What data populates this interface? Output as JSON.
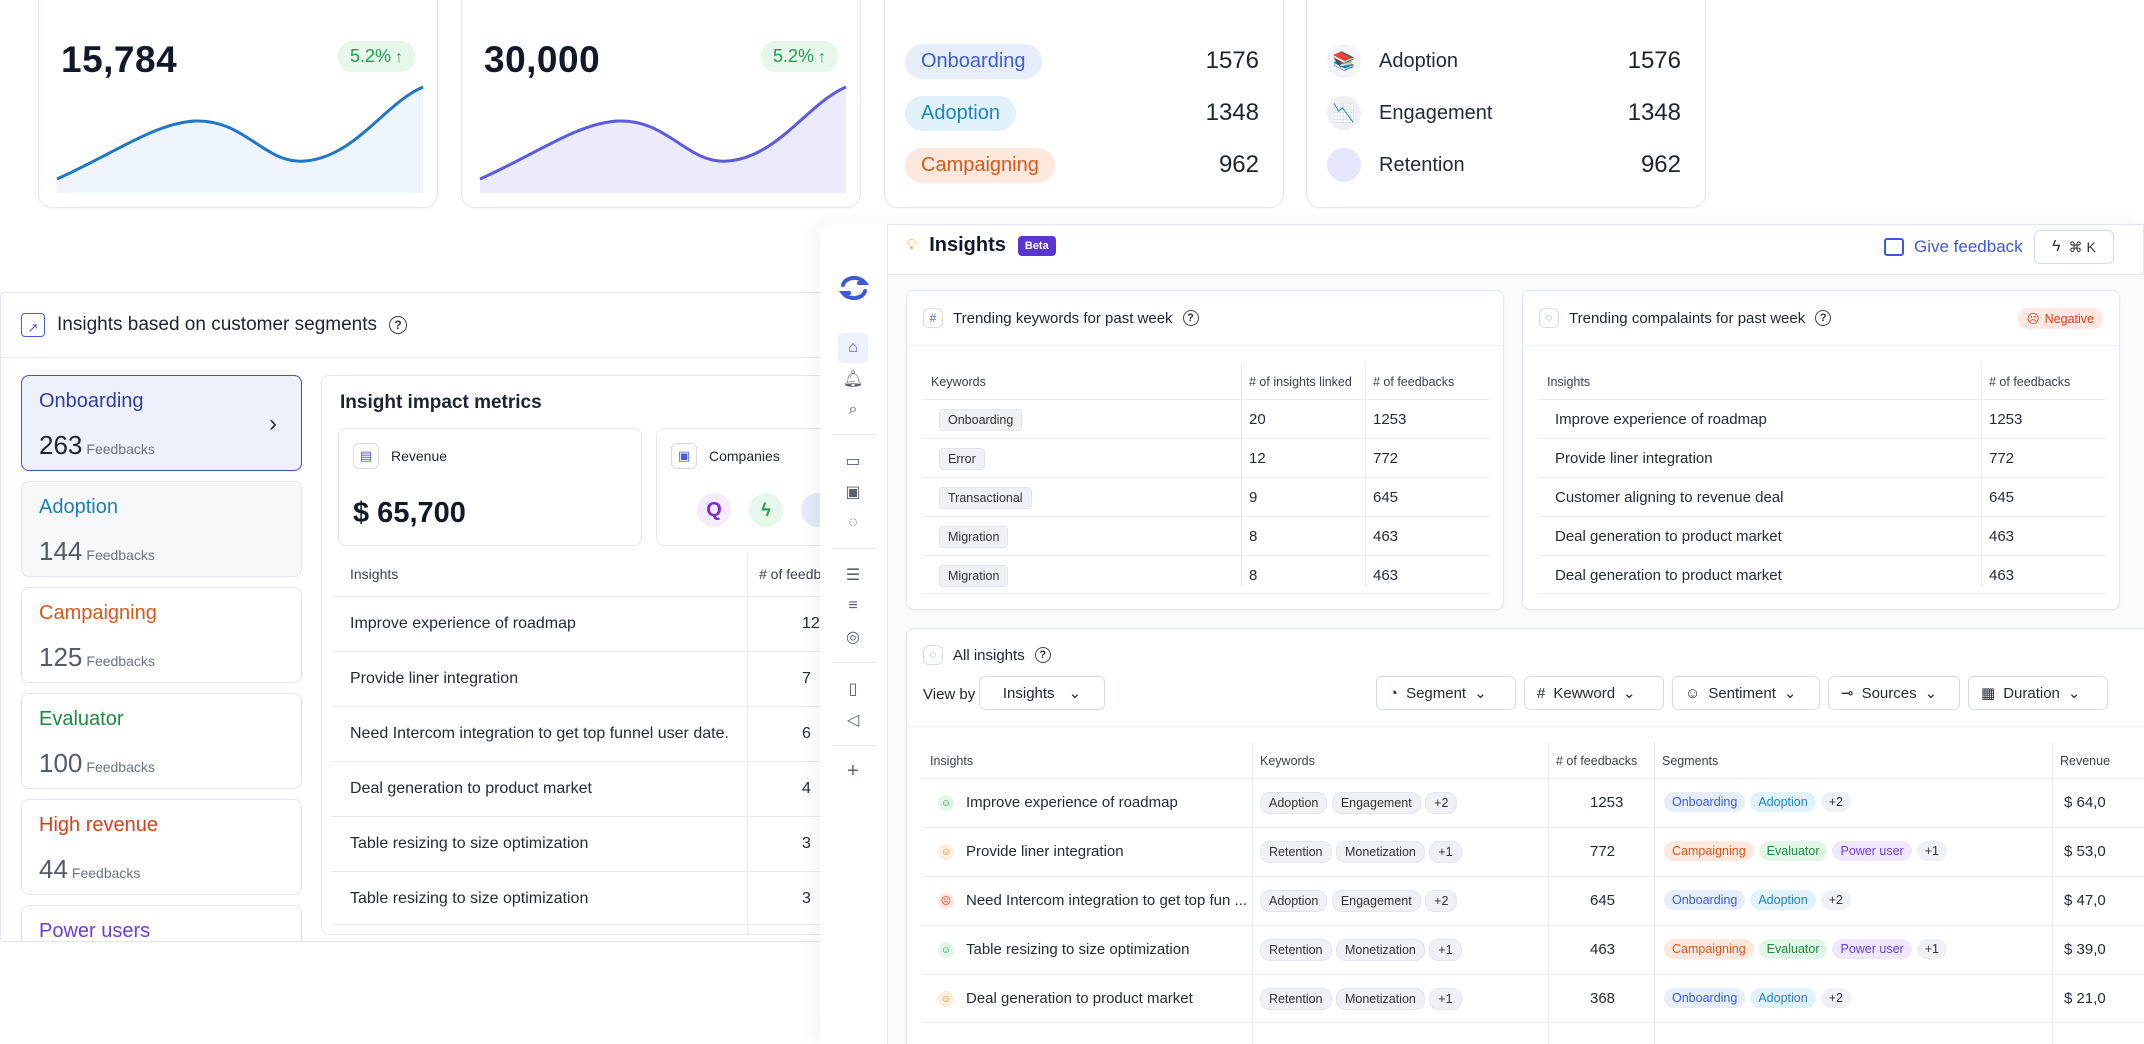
{
  "stat_cards": [
    {
      "value": "15,784",
      "change": "5.2%",
      "color": "#1f77c6",
      "fill": "#eaf3fb"
    },
    {
      "value": "30,000",
      "change": "5.2%",
      "color": "#5a5be0",
      "fill": "#ecebfb"
    }
  ],
  "segment_counts_card": {
    "rows": [
      {
        "label": "Onboarding",
        "value": "1576",
        "bg": "#e6edfb",
        "fg": "#3f5fd1"
      },
      {
        "label": "Adoption",
        "value": "1348",
        "bg": "#e2f2fb",
        "fg": "#1d87bd"
      },
      {
        "label": "Campaigning",
        "value": "962",
        "bg": "#fde8dd",
        "fg": "#d8581b"
      }
    ]
  },
  "icon_counts_card": {
    "rows": [
      {
        "label": "Adoption",
        "value": "1576",
        "icon": "books-icon"
      },
      {
        "label": "Engagement",
        "value": "1348",
        "icon": "graph-icon"
      },
      {
        "label": "Retention",
        "value": "962",
        "icon": "circle-icon"
      }
    ]
  },
  "left_panel": {
    "title": "Insights based on customer segments",
    "feedbacks_word": "Feedbacks",
    "segments": [
      {
        "name": "Onboarding",
        "count": "263",
        "color": "#2d3fa8"
      },
      {
        "name": "Adoption",
        "count": "144",
        "color": "#1d7fb3"
      },
      {
        "name": "Campaigning",
        "count": "125",
        "color": "#d8581b"
      },
      {
        "name": "Evaluator",
        "count": "100",
        "color": "#1e8a3e"
      },
      {
        "name": "High revenue",
        "count": "44",
        "color": "#d8401b"
      },
      {
        "name": "Power users",
        "count": "",
        "color": "#6a3fd8"
      }
    ],
    "impact_title": "Insight impact metrics",
    "revenue_label": "Revenue",
    "revenue_value": "$ 65,700",
    "companies_label": "Companies",
    "table_headers": [
      "Insights",
      "# of feedb"
    ],
    "rows": [
      {
        "text": "Improve experience of roadmap",
        "num": "12"
      },
      {
        "text": "Provide liner integration",
        "num": "7"
      },
      {
        "text": "Need Intercom integration to get top funnel user date.",
        "num": "6"
      },
      {
        "text": "Deal generation to product market",
        "num": "4"
      },
      {
        "text": "Table resizing to size optimization",
        "num": "3"
      },
      {
        "text": "Table resizing to size optimization",
        "num": "3"
      }
    ]
  },
  "app": {
    "title": "Insights",
    "beta": "Beta",
    "give_feedback": "Give feedback",
    "shortcut": "⌘ K",
    "keywords_card": {
      "title": "Trending keywords for past week",
      "headers": [
        "Keywords",
        "# of insights linked",
        "# of feedbacks"
      ],
      "rows": [
        {
          "kw": "Onboarding",
          "linked": "20",
          "fb": "1253"
        },
        {
          "kw": "Error",
          "linked": "12",
          "fb": "772"
        },
        {
          "kw": "Transactional",
          "linked": "9",
          "fb": "645"
        },
        {
          "kw": "Migration",
          "linked": "8",
          "fb": "463"
        },
        {
          "kw": "Migration",
          "linked": "8",
          "fb": "463"
        }
      ]
    },
    "complaints_card": {
      "title": "Trending compalaints for past week",
      "badge": "Negative",
      "headers": [
        "Insights",
        "# of feedbacks"
      ],
      "rows": [
        {
          "text": "Improve experience of roadmap",
          "fb": "1253"
        },
        {
          "text": "Provide liner integration",
          "fb": "772"
        },
        {
          "text": "Customer aligning to revenue deal",
          "fb": "645"
        },
        {
          "text": "Deal generation to product market",
          "fb": "463"
        },
        {
          "text": "Deal generation to product market",
          "fb": "463"
        }
      ]
    },
    "all_insights": {
      "title": "All insights",
      "view_by_label": "View by",
      "view_by_value": "Insights",
      "filters": [
        "Segment",
        "Kewword",
        "Sentiment",
        "Sources",
        "Duration"
      ],
      "headers": [
        "Insights",
        "Keywords",
        "# of feedbacks",
        "Segments",
        "Revenue"
      ],
      "rows": [
        {
          "text": "Improve experience of roadmap",
          "sentiment": "positive",
          "kw1": "Adoption",
          "kw2": "Engagement",
          "kwmore": "+2",
          "fb": "1253",
          "segs": [
            "Onboarding",
            "Adoption"
          ],
          "segmore": "+2",
          "rev": "$ 64,0"
        },
        {
          "text": "Provide liner integration",
          "sentiment": "neutral",
          "kw1": "Retention",
          "kw2": "Monetization",
          "kwmore": "+1",
          "fb": "772",
          "segs": [
            "Campaigning",
            "Evaluator",
            "Power user"
          ],
          "segmore": "+1",
          "rev": "$ 53,0"
        },
        {
          "text": "Need Intercom integration to get top fun ...",
          "sentiment": "negative",
          "kw1": "Adoption",
          "kw2": "Engagement",
          "kwmore": "+2",
          "fb": "645",
          "segs": [
            "Onboarding",
            "Adoption"
          ],
          "segmore": "+2",
          "rev": "$ 47,0"
        },
        {
          "text": "Table resizing to size optimization",
          "sentiment": "positive",
          "kw1": "Retention",
          "kw2": "Monetization",
          "kwmore": "+1",
          "fb": "463",
          "segs": [
            "Campaigning",
            "Evaluator",
            "Power user"
          ],
          "segmore": "+1",
          "rev": "$ 39,0"
        },
        {
          "text": "Deal generation to product market",
          "sentiment": "neutral",
          "kw1": "Retention",
          "kw2": "Monetization",
          "kwmore": "+1",
          "fb": "368",
          "segs": [
            "Onboarding",
            "Adoption"
          ],
          "segmore": "+2",
          "rev": "$ 21,0"
        }
      ]
    }
  }
}
